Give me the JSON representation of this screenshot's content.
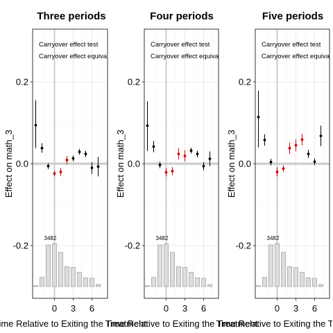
{
  "chart_data": [
    {
      "type": "scatter",
      "title": "Three periods",
      "xlabel": "Time Relative to Exiting the Treatment",
      "ylabel": "Effect on math_3",
      "annotations": [
        "Carryover effect test",
        "Carryover effect equivalence"
      ],
      "x_ticks": [
        "0",
        "3",
        "6"
      ],
      "y_ticks": [
        "-0.2",
        "0.0",
        "0.2"
      ],
      "xlim": [
        -3.8,
        8.5
      ],
      "ylim": [
        -0.33,
        0.33
      ],
      "grid": true,
      "points": [
        {
          "x": -3,
          "y": 0.094,
          "lo": 0.038,
          "hi": 0.155,
          "color": "#000000"
        },
        {
          "x": -2,
          "y": 0.038,
          "lo": 0.027,
          "hi": 0.05,
          "color": "#000000"
        },
        {
          "x": -1,
          "y": -0.006,
          "lo": -0.013,
          "hi": 0.001,
          "color": "#000000"
        },
        {
          "x": 0,
          "y": -0.024,
          "lo": -0.031,
          "hi": -0.017,
          "color": "#d40000"
        },
        {
          "x": 1,
          "y": -0.02,
          "lo": -0.03,
          "hi": -0.01,
          "color": "#d40000"
        },
        {
          "x": 2,
          "y": 0.009,
          "lo": -0.001,
          "hi": 0.019,
          "color": "#d40000"
        },
        {
          "x": 3,
          "y": 0.013,
          "lo": 0.006,
          "hi": 0.02,
          "color": "#000000"
        },
        {
          "x": 4,
          "y": 0.029,
          "lo": 0.022,
          "hi": 0.036,
          "color": "#000000"
        },
        {
          "x": 5,
          "y": 0.024,
          "lo": 0.016,
          "hi": 0.032,
          "color": "#000000"
        },
        {
          "x": 6,
          "y": -0.01,
          "lo": -0.025,
          "hi": 0.004,
          "color": "#000000"
        },
        {
          "x": 7,
          "y": -0.007,
          "lo": -0.031,
          "hi": 0.017,
          "color": "#000000"
        }
      ],
      "bar_label": "3482",
      "bars": [
        0.02,
        0.22,
        1.0,
        1.03,
        0.82,
        0.48,
        0.46,
        0.34,
        0.21,
        0.2,
        0.05
      ]
    },
    {
      "type": "scatter",
      "title": "Four periods",
      "xlabel": "Time Relative to Exiting the Treatment",
      "ylabel": "Effect on math_3",
      "annotations": [
        "Carryover effect test",
        "Carryover effect equivalence"
      ],
      "x_ticks": [
        "0",
        "3",
        "6"
      ],
      "y_ticks": [
        "-0.2",
        "0.0",
        "0.2"
      ],
      "xlim": [
        -3.8,
        8.5
      ],
      "ylim": [
        -0.33,
        0.33
      ],
      "grid": true,
      "points": [
        {
          "x": -3,
          "y": 0.093,
          "lo": 0.031,
          "hi": 0.153,
          "color": "#000000"
        },
        {
          "x": -2,
          "y": 0.042,
          "lo": 0.028,
          "hi": 0.056,
          "color": "#000000"
        },
        {
          "x": -1,
          "y": -0.003,
          "lo": -0.011,
          "hi": 0.005,
          "color": "#000000"
        },
        {
          "x": 0,
          "y": -0.021,
          "lo": -0.031,
          "hi": -0.011,
          "color": "#d40000"
        },
        {
          "x": 1,
          "y": -0.018,
          "lo": -0.028,
          "hi": -0.008,
          "color": "#d40000"
        },
        {
          "x": 2,
          "y": 0.024,
          "lo": 0.01,
          "hi": 0.038,
          "color": "#d40000"
        },
        {
          "x": 3,
          "y": 0.019,
          "lo": 0.005,
          "hi": 0.033,
          "color": "#d40000"
        },
        {
          "x": 4,
          "y": 0.032,
          "lo": 0.025,
          "hi": 0.039,
          "color": "#000000"
        },
        {
          "x": 5,
          "y": 0.024,
          "lo": 0.016,
          "hi": 0.032,
          "color": "#000000"
        },
        {
          "x": 6,
          "y": -0.006,
          "lo": -0.016,
          "hi": 0.004,
          "color": "#000000"
        },
        {
          "x": 7,
          "y": 0.012,
          "lo": -0.006,
          "hi": 0.03,
          "color": "#000000"
        }
      ],
      "bar_label": "3482",
      "bars": [
        0.02,
        0.22,
        1.0,
        1.03,
        0.82,
        0.48,
        0.46,
        0.34,
        0.21,
        0.2,
        0.05
      ]
    },
    {
      "type": "scatter",
      "title": "Five periods",
      "xlabel": "Time Relative to Exiting the Treatment",
      "ylabel": "Effect on math_3",
      "annotations": [
        "Carryover effect test",
        "Carryover effect equivalence"
      ],
      "x_ticks": [
        "0",
        "3",
        "6"
      ],
      "y_ticks": [
        "-0.2",
        "0.0",
        "0.2"
      ],
      "xlim": [
        -3.8,
        8.5
      ],
      "ylim": [
        -0.33,
        0.33
      ],
      "grid": true,
      "points": [
        {
          "x": -3,
          "y": 0.114,
          "lo": 0.04,
          "hi": 0.178,
          "color": "#000000"
        },
        {
          "x": -2,
          "y": 0.058,
          "lo": 0.044,
          "hi": 0.072,
          "color": "#000000"
        },
        {
          "x": -1,
          "y": 0.004,
          "lo": -0.004,
          "hi": 0.012,
          "color": "#000000"
        },
        {
          "x": 0,
          "y": -0.02,
          "lo": -0.031,
          "hi": -0.009,
          "color": "#d40000"
        },
        {
          "x": 1,
          "y": -0.012,
          "lo": -0.02,
          "hi": -0.004,
          "color": "#d40000"
        },
        {
          "x": 2,
          "y": 0.038,
          "lo": 0.024,
          "hi": 0.052,
          "color": "#d40000"
        },
        {
          "x": 3,
          "y": 0.045,
          "lo": 0.03,
          "hi": 0.06,
          "color": "#d40000"
        },
        {
          "x": 4,
          "y": 0.059,
          "lo": 0.045,
          "hi": 0.073,
          "color": "#d40000"
        },
        {
          "x": 5,
          "y": 0.024,
          "lo": 0.014,
          "hi": 0.034,
          "color": "#000000"
        },
        {
          "x": 6,
          "y": 0.005,
          "lo": -0.003,
          "hi": 0.013,
          "color": "#000000"
        },
        {
          "x": 7,
          "y": 0.068,
          "lo": 0.043,
          "hi": 0.093,
          "color": "#000000"
        }
      ],
      "bar_label": "3482",
      "bars": [
        0.02,
        0.22,
        1.0,
        1.03,
        0.82,
        0.48,
        0.46,
        0.34,
        0.21,
        0.2,
        0.05
      ]
    }
  ]
}
